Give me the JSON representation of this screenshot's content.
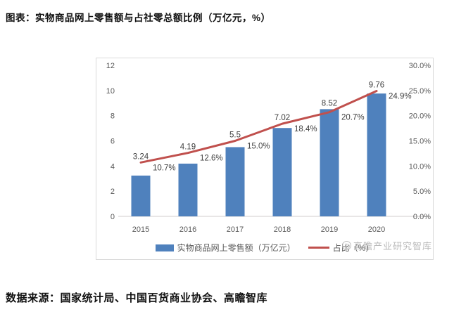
{
  "header": {
    "title": "图表：实物商品网上零售额与占社零总额比例（万亿元，%）"
  },
  "footer": {
    "source": "数据来源：国家统计局、中国百货商业协会、高瞻智库"
  },
  "watermark": {
    "text": "高瞻产业研究智库"
  },
  "colors": {
    "bar": "#4F81BD",
    "line": "#C0504D",
    "axis_text": "#595959",
    "data_label_text": "#404040",
    "axis_line": "#d0cece",
    "frame_border": "#d9d9d9"
  },
  "chart_data": {
    "type": "bar",
    "title": "实物商品网上零售额与占社零总额比例（万亿元，%）",
    "categories": [
      "2015",
      "2016",
      "2017",
      "2018",
      "2019",
      "2020"
    ],
    "series": [
      {
        "name": "实物商品网上零售额（万亿元）",
        "type": "bar",
        "axis": "left",
        "color": "#4F81BD",
        "values": [
          3.24,
          4.19,
          5.5,
          7.02,
          8.52,
          9.76
        ],
        "labels": [
          "3.24",
          "4.19",
          "5.5",
          "7.02",
          "8.52",
          "9.76"
        ]
      },
      {
        "name": "占比（%）",
        "type": "line",
        "axis": "right",
        "color": "#C0504D",
        "values": [
          10.7,
          12.6,
          15.0,
          18.4,
          20.7,
          24.9
        ],
        "labels": [
          "10.7%",
          "12.6%",
          "15.0%",
          "18.4%",
          "20.7%",
          "24.9%"
        ]
      }
    ],
    "left_axis": {
      "min": 0,
      "max": 12,
      "step": 2,
      "ticks": [
        "0",
        "2",
        "4",
        "6",
        "8",
        "10",
        "12"
      ]
    },
    "right_axis": {
      "min": 0,
      "max": 30,
      "step": 5,
      "ticks": [
        "0.0%",
        "5.0%",
        "10.0%",
        "15.0%",
        "20.0%",
        "25.0%",
        "30.0%"
      ]
    },
    "grid": false,
    "legend_position": "bottom"
  }
}
